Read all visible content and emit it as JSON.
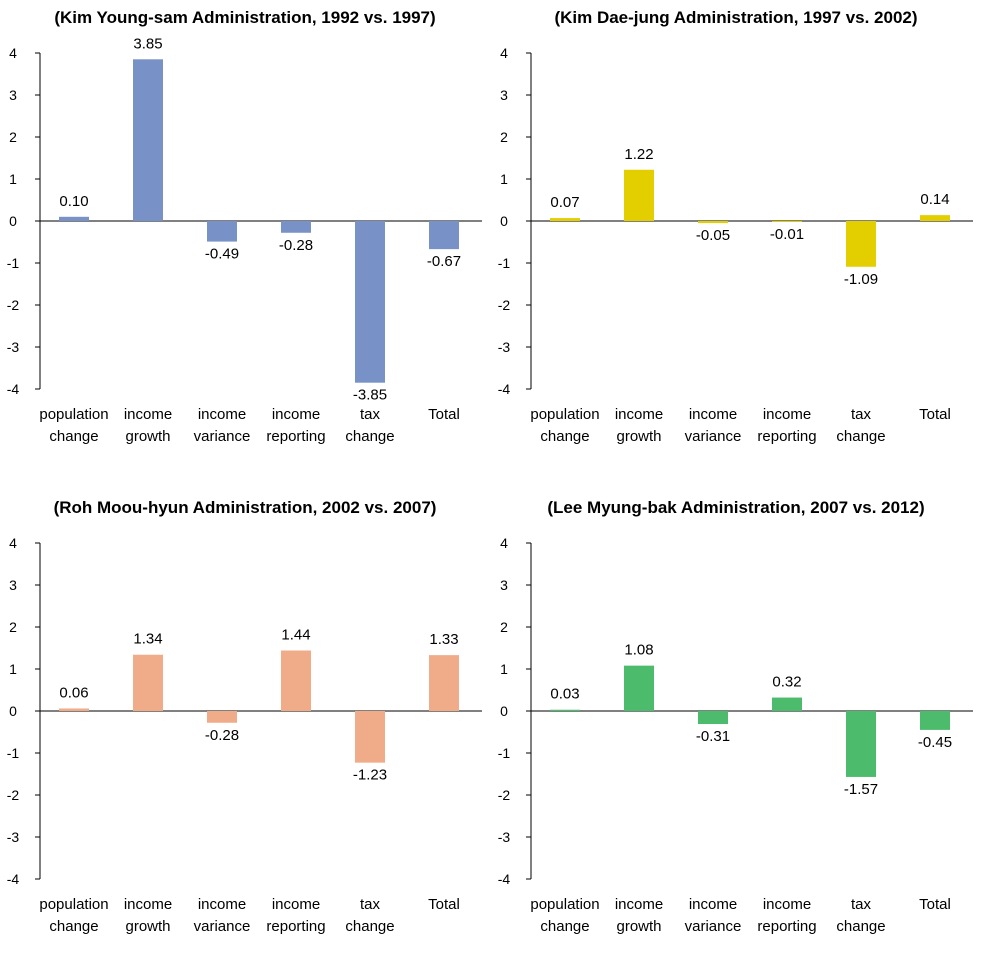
{
  "chart_data": [
    {
      "type": "bar",
      "title": "(Kim Young-sam Administration, 1992 vs. 1997)",
      "categories": [
        [
          "population",
          "change"
        ],
        [
          "income",
          "growth"
        ],
        [
          "income",
          "variance"
        ],
        [
          "income",
          "reporting"
        ],
        [
          "tax",
          "change"
        ],
        [
          "Total"
        ]
      ],
      "values": [
        0.1,
        3.85,
        -0.49,
        -0.28,
        -3.85,
        -0.67
      ],
      "data_labels": [
        "0.10",
        "3.85",
        "-0.49",
        "-0.28",
        "-3.85",
        "-0.67"
      ],
      "ylim": [
        -4,
        4
      ],
      "yticks": [
        4,
        3,
        2,
        1,
        0,
        -1,
        -2,
        -3,
        -4
      ],
      "grid": false,
      "color": "#7891c6"
    },
    {
      "type": "bar",
      "title": "(Kim Dae-jung Administration, 1997 vs. 2002)",
      "categories": [
        [
          "population",
          "change"
        ],
        [
          "income",
          "growth"
        ],
        [
          "income",
          "variance"
        ],
        [
          "income",
          "reporting"
        ],
        [
          "tax",
          "change"
        ],
        [
          "Total"
        ]
      ],
      "values": [
        0.07,
        1.22,
        -0.05,
        -0.01,
        -1.09,
        0.14
      ],
      "data_labels": [
        "0.07",
        "1.22",
        "-0.05",
        "-0.01",
        "-1.09",
        "0.14"
      ],
      "ylim": [
        -4,
        4
      ],
      "yticks": [
        4,
        3,
        2,
        1,
        0,
        -1,
        -2,
        -3,
        -4
      ],
      "grid": false,
      "color": "#e3cf00"
    },
    {
      "type": "bar",
      "title": "(Roh Moou-hyun Administration, 2002 vs. 2007)",
      "categories": [
        [
          "population",
          "change"
        ],
        [
          "income",
          "growth"
        ],
        [
          "income",
          "variance"
        ],
        [
          "income",
          "reporting"
        ],
        [
          "tax",
          "change"
        ],
        [
          "Total"
        ]
      ],
      "values": [
        0.06,
        1.34,
        -0.28,
        1.44,
        -1.23,
        1.33
      ],
      "data_labels": [
        "0.06",
        "1.34",
        "-0.28",
        "1.44",
        "-1.23",
        "1.33"
      ],
      "ylim": [
        -4,
        4
      ],
      "yticks": [
        4,
        3,
        2,
        1,
        0,
        -1,
        -2,
        -3,
        -4
      ],
      "grid": false,
      "color": "#f0ab88"
    },
    {
      "type": "bar",
      "title": "(Lee Myung-bak Administration, 2007 vs. 2012)",
      "categories": [
        [
          "population",
          "change"
        ],
        [
          "income",
          "growth"
        ],
        [
          "income",
          "variance"
        ],
        [
          "income",
          "reporting"
        ],
        [
          "tax",
          "change"
        ],
        [
          "Total"
        ]
      ],
      "values": [
        0.03,
        1.08,
        -0.31,
        0.32,
        -1.57,
        -0.45
      ],
      "data_labels": [
        "0.03",
        "1.08",
        "-0.31",
        "0.32",
        "-1.57",
        "-0.45"
      ],
      "ylim": [
        -4,
        4
      ],
      "yticks": [
        4,
        3,
        2,
        1,
        0,
        -1,
        -2,
        -3,
        -4
      ],
      "grid": false,
      "color": "#4cbc6c"
    }
  ]
}
